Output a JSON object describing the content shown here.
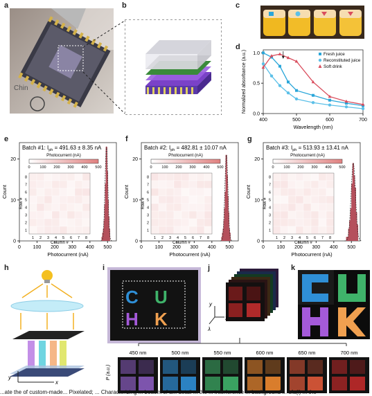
{
  "panel_labels": {
    "a": "a",
    "b": "b",
    "c": "c",
    "d": "d",
    "e": "e",
    "f": "f",
    "g": "g",
    "h": "h",
    "i": "i",
    "j": "j",
    "k": "k"
  },
  "photo_text": {
    "chinese": "Chin"
  },
  "colors": {
    "fresh_juice": "#2aa6d9",
    "reconstituted_juice": "#5cc0e8",
    "soft_drink": "#d94c5c",
    "histogram_bar": "#b5505c",
    "heatmap_high": "#e0807f",
    "letter_c": "#2f8fd6",
    "letter_u": "#3fb36a",
    "letter_h": "#a45ad9",
    "letter_k": "#f0a050"
  },
  "chart_data": [
    {
      "panel": "d",
      "type": "line",
      "xlabel": "Wavelength (nm)",
      "ylabel": "Normalized absorbance (a.u.)",
      "xlim": [
        400,
        700
      ],
      "ylim": [
        0,
        1.05
      ],
      "xticks": [
        "400",
        "500",
        "600",
        "700"
      ],
      "yticks": [
        "0.0",
        "0.5",
        "1.0"
      ],
      "legend_position": "top-right",
      "series": [
        {
          "name": "Fresh juice",
          "marker": "square",
          "x": [
            400,
            425,
            450,
            475,
            500,
            550,
            600,
            650,
            700
          ],
          "y": [
            1.0,
            0.93,
            0.78,
            0.52,
            0.38,
            0.3,
            0.22,
            0.17,
            0.13
          ]
        },
        {
          "name": "Reconstituted juice",
          "marker": "circle",
          "x": [
            400,
            425,
            450,
            475,
            500,
            550,
            600,
            650,
            700
          ],
          "y": [
            0.82,
            0.62,
            0.46,
            0.34,
            0.24,
            0.18,
            0.14,
            0.11,
            0.08
          ]
        },
        {
          "name": "Soft drink",
          "marker": "triangle",
          "x": [
            400,
            425,
            450,
            475,
            500,
            550,
            600,
            650,
            700
          ],
          "y": [
            0.76,
            0.95,
            0.98,
            0.92,
            0.86,
            0.52,
            0.28,
            0.2,
            0.15
          ]
        }
      ]
    },
    {
      "panel": "e",
      "type": "bar",
      "title": "Batch #1: I",
      "title_sub": "ph",
      "title_value": " = 491.63 ± 8.35 nA",
      "xlabel": "Photocurrent (nA)",
      "ylabel": "Count",
      "xlim": [
        0,
        550
      ],
      "ylim": [
        0,
        24
      ],
      "xticks": [
        "0",
        "100",
        "200",
        "300",
        "400",
        "500"
      ],
      "yticks": [
        "0",
        "10",
        "20"
      ],
      "x": [
        470,
        474,
        478,
        482,
        486,
        490,
        494,
        498,
        502,
        506,
        510
      ],
      "values": [
        1,
        2,
        3,
        5,
        9,
        14,
        23,
        17,
        10,
        6,
        3
      ],
      "colorbar_label": "Photocurrent (nA)",
      "colorbar_ticks": [
        "0",
        "100",
        "200",
        "300",
        "400",
        "500"
      ],
      "heatmap_rows_label": "Row #",
      "heatmap_cols_label": "Column #",
      "heatmap_ticks": [
        "1",
        "2",
        "3",
        "4",
        "5",
        "6",
        "7",
        "8"
      ]
    },
    {
      "panel": "f",
      "type": "bar",
      "title": "Batch #2: I",
      "title_sub": "ph",
      "title_value": " = 482.81 ± 10.07 nA",
      "xlabel": "Photocurrent (nA)",
      "ylabel": "Count",
      "xlim": [
        0,
        550
      ],
      "ylim": [
        0,
        24
      ],
      "xticks": [
        "0",
        "100",
        "200",
        "300",
        "400",
        "500"
      ],
      "yticks": [
        "0",
        "10",
        "20"
      ],
      "x": [
        458,
        462,
        466,
        470,
        474,
        478,
        482,
        486,
        490,
        494,
        498,
        502
      ],
      "values": [
        1,
        2,
        3,
        5,
        8,
        12,
        21,
        16,
        11,
        7,
        3,
        2
      ],
      "colorbar_label": "Photocurrent (nA)",
      "colorbar_ticks": [
        "0",
        "100",
        "200",
        "300",
        "400",
        "500"
      ],
      "heatmap_rows_label": "Row #",
      "heatmap_cols_label": "Column #",
      "heatmap_ticks": [
        "1",
        "2",
        "3",
        "4",
        "5",
        "6",
        "7",
        "8"
      ]
    },
    {
      "panel": "g",
      "type": "bar",
      "title": "Batch #3: I",
      "title_sub": "ph",
      "title_value": " = 513.93 ± 13.41 nA",
      "xlabel": "Photocurrent (nA)",
      "ylabel": "Count",
      "xlim": [
        0,
        550
      ],
      "ylim": [
        0,
        24
      ],
      "xticks": [
        "0",
        "100",
        "200",
        "300",
        "400",
        "500"
      ],
      "yticks": [
        "0",
        "10",
        "20"
      ],
      "x": [
        474,
        480,
        486,
        492,
        498,
        504,
        510,
        516,
        522,
        528,
        534
      ],
      "values": [
        1,
        1,
        3,
        5,
        8,
        14,
        19,
        16,
        13,
        7,
        4
      ],
      "colorbar_label": "Photocurrent (nA)",
      "colorbar_ticks": [
        "0",
        "100",
        "200",
        "300",
        "400",
        "500"
      ],
      "heatmap_rows_label": "Row #",
      "heatmap_cols_label": "Column #",
      "heatmap_ticks": [
        "1",
        "2",
        "3",
        "4",
        "5",
        "6",
        "7",
        "8"
      ]
    }
  ],
  "panel_h": {
    "x_axis": "x",
    "y_axis": "y"
  },
  "panel_i": {
    "letters": [
      "C",
      "U",
      "H",
      "K"
    ]
  },
  "panel_j": {
    "axis_y": "y",
    "axis_x": "x",
    "axis_lambda": "λ"
  },
  "wavelength_strip": {
    "ylabel": "P (a.u.)",
    "items": [
      {
        "label": "450 nm",
        "tint": "#8a5cbf"
      },
      {
        "label": "500 nm",
        "tint": "#2f8fd6"
      },
      {
        "label": "550 nm",
        "tint": "#3fb36a"
      },
      {
        "label": "600 nm",
        "tint": "#f08a30"
      },
      {
        "label": "650 nm",
        "tint": "#e05a3a"
      },
      {
        "label": "700 nm",
        "tint": "#c02a2a"
      }
    ]
  },
  "caption_fragment": "...ate the of custom-made... Pixelated; ... Characterizing ... bottom of a... detail ... the ... interference ... background ... ofa(i) ... the"
}
